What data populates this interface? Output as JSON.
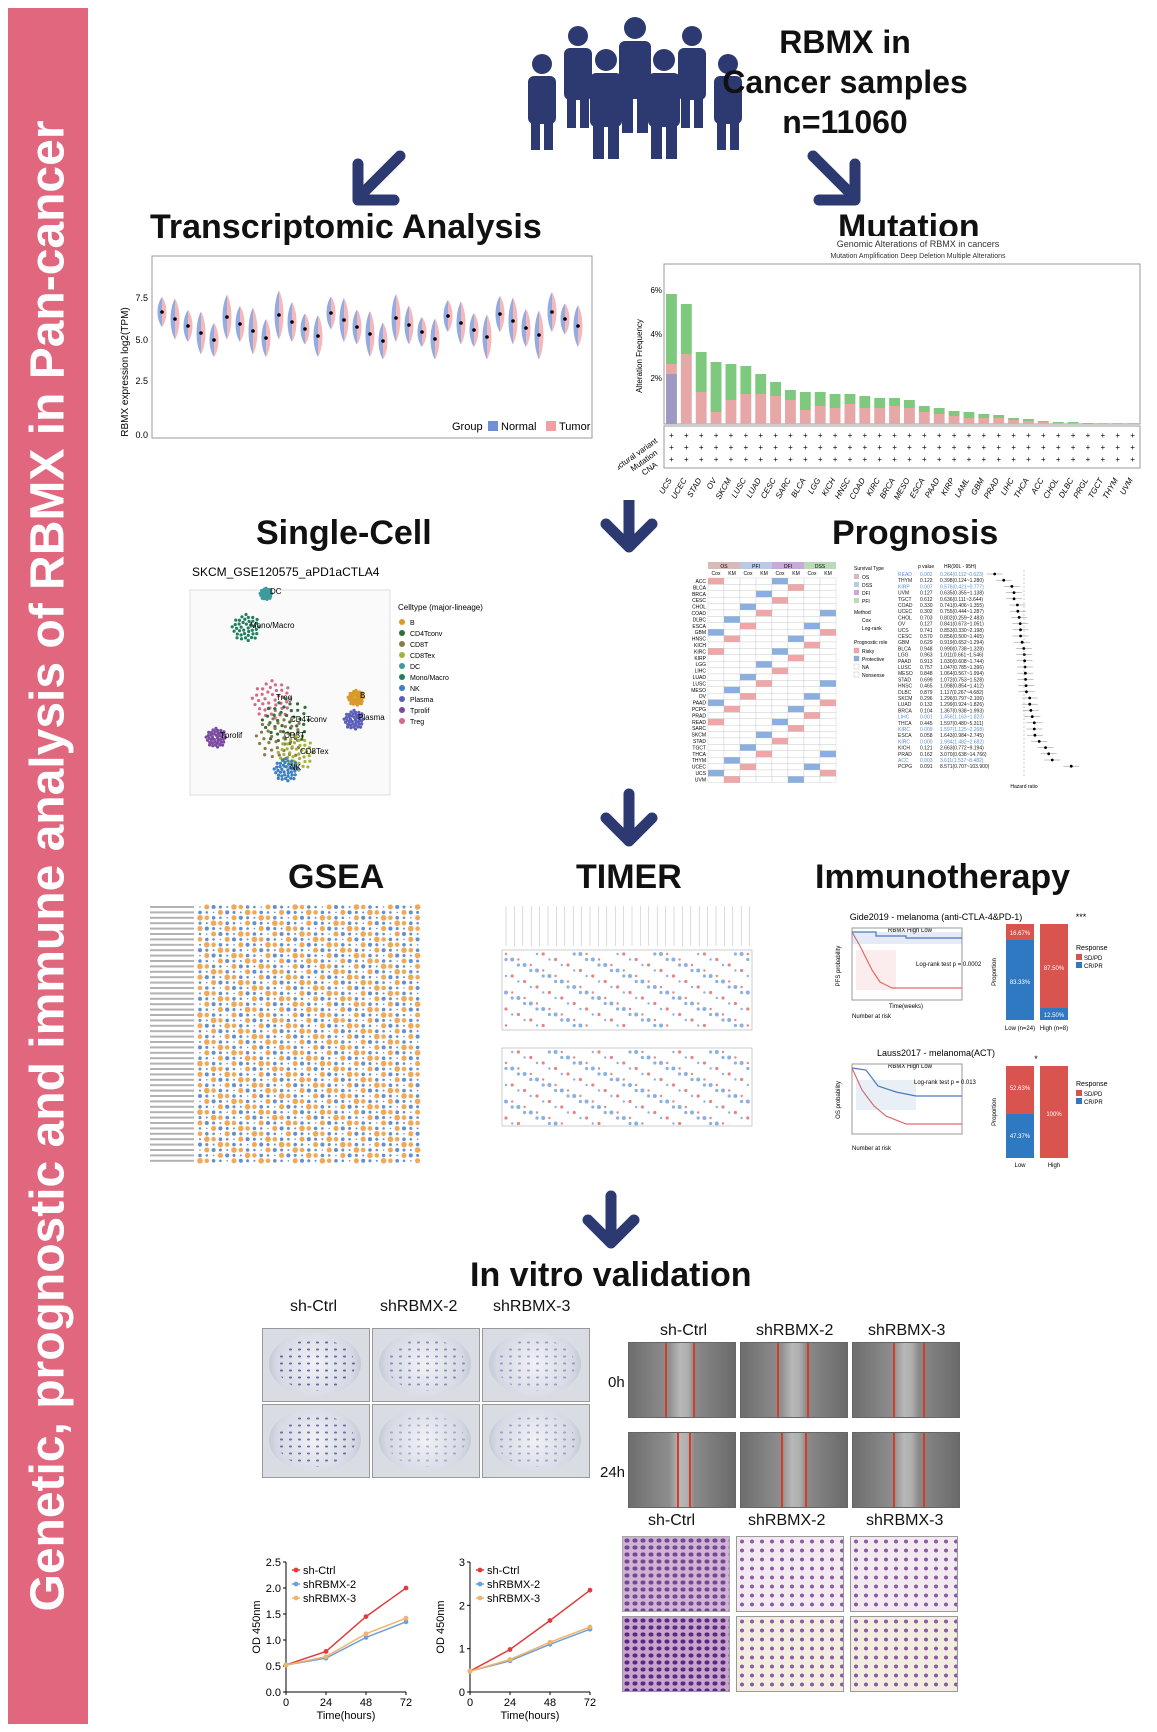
{
  "sidebar": {
    "title": "Genetic, prognostic and immune analysis of RBMX in Pan-cancer"
  },
  "header": {
    "line1": "RBMX in",
    "line2": "Cancer samples",
    "line3": "n=11060"
  },
  "sections": {
    "transcriptomic": "Transcriptomic Analysis",
    "mutation": "Mutation",
    "single_cell": "Single-Cell",
    "prognosis": "Prognosis",
    "gsea": "GSEA",
    "timer": "TIMER",
    "immunotherapy": "Immunotherapy",
    "invitro": "In vitro validation"
  },
  "transcriptomic_panel": {
    "ylabel": "RBMX expression log2(TPM)",
    "legend_title": "Group",
    "legend_normal": "Normal",
    "legend_tumor": "Tumor",
    "yticks": [
      "0.0",
      "2.5",
      "5.0",
      "7.5"
    ],
    "colors": {
      "normal": "#6f8fd6",
      "tumor": "#f0a0a3"
    }
  },
  "mutation_panel": {
    "title": "Genomic Alterations of RBMX in cancers",
    "legend": "Mutation  Amplification  Deep Deletion  Multiple Alterations",
    "ylabel": "Alteration Frequency",
    "yticks": [
      "2%",
      "4%",
      "6%"
    ],
    "row_labels": [
      "Structural variant",
      "Mutation",
      "CNA"
    ],
    "cancers": [
      "UCS",
      "UCEC",
      "STAD",
      "OV",
      "SKCM",
      "LUSC",
      "LUAD",
      "CESC",
      "SARC",
      "BLCA",
      "LGG",
      "KICH",
      "HNSC",
      "COAD",
      "KIRC",
      "BRCA",
      "MESO",
      "ESCA",
      "PAAD",
      "KIRP",
      "LAML",
      "GBM",
      "PRAD",
      "LIHC",
      "THCA",
      "ACC",
      "CHOL",
      "DLBC",
      "PRGL",
      "TGCT",
      "THYM",
      "UVM"
    ],
    "colors": {
      "amplification": "#e7a7a7",
      "mutation": "#7fc97f",
      "deletion": "#6b8fd4"
    }
  },
  "single_cell_panel": {
    "title": "SKCM_GSE120575_aPD1aCTLA4",
    "legend_title": "Celltype (major-lineage)",
    "celltypes": [
      "B",
      "CD4Tconv",
      "CD8T",
      "CD8Tex",
      "DC",
      "Mono/Macro",
      "NK",
      "Plasma",
      "Tprolif",
      "Treg"
    ],
    "cluster_labels": [
      "DC",
      "Mono/Macro",
      "Treg",
      "CD4Tconv",
      "CD8T",
      "CD8Tex",
      "NK",
      "Tprolif",
      "B",
      "Plasma"
    ],
    "celltype_colors": [
      "#d99a2b",
      "#2f6f3a",
      "#8a7b45",
      "#a6b13a",
      "#3c9b9b",
      "#1f7f5e",
      "#3a7fc1",
      "#5b5fb8",
      "#7b4aa0",
      "#d26a8a"
    ]
  },
  "prognosis_panel": {
    "groups": [
      "OS",
      "PFI",
      "DFI",
      "DSS"
    ],
    "subheaders": [
      "Cox",
      "KM"
    ],
    "cancers": [
      "ACC",
      "BLCA",
      "BRCA",
      "CESC",
      "CHOL",
      "COAD",
      "DLBC",
      "ESCA",
      "GBM",
      "HNSC",
      "KICH",
      "KIRC",
      "KIRP",
      "LGG",
      "LIHC",
      "LUAD",
      "LUSC",
      "MESO",
      "OV",
      "PAAD",
      "PCPG",
      "PRAD",
      "READ",
      "SARC",
      "SKCM",
      "STAD",
      "TGCT",
      "THCA",
      "THYM",
      "UCEC",
      "UCS",
      "UVM"
    ],
    "legend_survival": "Survival Type",
    "survival_types": [
      "OS",
      "DSS",
      "DFI",
      "PFI"
    ],
    "legend_method": "Method",
    "methods": [
      "Cox",
      "Log-rank"
    ],
    "legend_role": "Prognostic role",
    "roles": [
      "Risky",
      "Protective",
      "NA",
      "Nonsense"
    ],
    "forest_headers": [
      "p value",
      "HR(90L - 95H)"
    ],
    "forest_rows": [
      {
        "c": "READ",
        "p": "0.002",
        "hr": "0.264(0.112~0.623)"
      },
      {
        "c": "THYM",
        "p": "0.122",
        "hr": "0.398(0.124~1.280)"
      },
      {
        "c": "KIRP",
        "p": "0.007",
        "hr": "0.576(0.421~0.777)"
      },
      {
        "c": "UVM",
        "p": "0.127",
        "hr": "0.635(0.355~1.138)"
      },
      {
        "c": "TGCT",
        "p": "0.612",
        "hr": "0.636(0.111~3.644)"
      },
      {
        "c": "COAD",
        "p": "0.330",
        "hr": "0.741(0.406~1.355)"
      },
      {
        "c": "UCEC",
        "p": "0.302",
        "hr": "0.755(0.444~1.287)"
      },
      {
        "c": "CHOL",
        "p": "0.703",
        "hr": "0.802(0.259~2.483)"
      },
      {
        "c": "OV",
        "p": "0.127",
        "hr": "0.841(0.673~1.051)"
      },
      {
        "c": "UCS",
        "p": "0.741",
        "hr": "0.853(0.330~2.198)"
      },
      {
        "c": "CESC",
        "p": "0.570",
        "hr": "0.856(0.500~1.465)"
      },
      {
        "c": "GBM",
        "p": "0.629",
        "hr": "0.919(0.652~1.294)"
      },
      {
        "c": "BLCA",
        "p": "0.948",
        "hr": "0.990(0.738~1.328)"
      },
      {
        "c": "LGG",
        "p": "0.963",
        "hr": "1.011(0.661~1.546)"
      },
      {
        "c": "PAAD",
        "p": "0.913",
        "hr": "1.030(0.608~1.744)"
      },
      {
        "c": "LUSC",
        "p": "0.757",
        "hr": "1.047(0.785~1.396)"
      },
      {
        "c": "MESO",
        "p": "0.848",
        "hr": "1.064(0.567~1.994)"
      },
      {
        "c": "STAD",
        "p": "0.699",
        "hr": "1.072(0.753~1.528)"
      },
      {
        "c": "HNSC",
        "p": "0.465",
        "hr": "1.098(0.854~1.412)"
      },
      {
        "c": "DLBC",
        "p": "0.879",
        "hr": "1.117(0.267~4.682)"
      },
      {
        "c": "SKCM",
        "p": "0.296",
        "hr": "1.296(0.797~2.106)"
      },
      {
        "c": "LUAD",
        "p": "0.132",
        "hr": "1.299(0.924~1.826)"
      },
      {
        "c": "BRCA",
        "p": "0.104",
        "hr": "1.367(0.938~1.993)"
      },
      {
        "c": "LIHC",
        "p": "0.001",
        "hr": "1.456(1.163~1.823)"
      },
      {
        "c": "THCA",
        "p": "0.445",
        "hr": "1.597(0.480~5.311)"
      },
      {
        "c": "KIRC",
        "p": "0.009",
        "hr": "1.597(1.125~2.268)"
      },
      {
        "c": "ESCA",
        "p": "0.058",
        "hr": "1.643(0.984~2.745)"
      },
      {
        "c": "KIRC",
        "p": "0.000",
        "hr": "1.994(1.482~2.682)"
      },
      {
        "c": "KICH",
        "p": "0.121",
        "hr": "2.663(0.772~9.194)"
      },
      {
        "c": "PRAD",
        "p": "0.162",
        "hr": "3.070(0.638~14.766)"
      },
      {
        "c": "ACC",
        "p": "0.003",
        "hr": "3.611(1.537~8.482)"
      },
      {
        "c": "PCPG",
        "p": "0.091",
        "hr": "8.571(0.707~103.900)"
      }
    ],
    "forest_xlabel": "Hazard ratio"
  },
  "immuno_panel": {
    "title1": "Gide2019 - melanoma (anti-CTLA-4&PD-1)",
    "title2": "Lauss2017 - melanoma(ACT)",
    "km_legend": "RBMX  High  Low",
    "ylabel1": "PFS probability",
    "ylabel2": "OS probability",
    "logrank1": "Log-rank test p = 0.0002",
    "logrank2": "Log-rank test p = 0.013",
    "xlabel": "Time(weeks)",
    "number_at_risk": "Number at risk",
    "bar_ylabel": "Proportion",
    "sig1": "***",
    "sig2": "*",
    "bar1_low": {
      "top": "16.67%",
      "bottom": "83.33%",
      "label": "Low (n=24)"
    },
    "bar1_high": {
      "top": "87.50%",
      "bottom": "12.50%",
      "label": "High (n=8)"
    },
    "bar2_low": {
      "top": "52.63%",
      "bottom": "47.37%",
      "label": "Low"
    },
    "bar2_high": {
      "top": "100%",
      "bottom": "",
      "label": "High"
    },
    "response_title": "Response",
    "response_items": [
      "SD/PD",
      "CR/PR"
    ],
    "colors": {
      "sdpd": "#d9534f",
      "crpr": "#2f79c2"
    }
  },
  "invitro": {
    "colony_labels": [
      "sh-Ctrl",
      "shRBMX-2",
      "shRBMX-3"
    ],
    "wound_labels": [
      "sh-Ctrl",
      "shRBMX-2",
      "shRBMX-3"
    ],
    "wound_times": [
      "0h",
      "24h"
    ],
    "transwell_labels": [
      "sh-Ctrl",
      "shRBMX-2",
      "shRBMX-3"
    ],
    "growth_ylabel": "OD 450nm",
    "growth_xlabel": "Time(hours)"
  },
  "chart_data": [
    {
      "type": "line",
      "title": "",
      "xlabel": "Time(hours)",
      "ylabel": "OD 450nm",
      "x": [
        0,
        24,
        48,
        72
      ],
      "ylim": [
        0.0,
        2.5
      ],
      "yticks": [
        "0.0",
        "0.5",
        "1.0",
        "1.5",
        "2.0",
        "2.5"
      ],
      "series": [
        {
          "name": "sh-Ctrl",
          "values": [
            0.52,
            0.78,
            1.45,
            2.0
          ],
          "color": "#e03c3c"
        },
        {
          "name": "shRBMX-2",
          "values": [
            0.52,
            0.65,
            1.05,
            1.35
          ],
          "color": "#6f9fd8"
        },
        {
          "name": "shRBMX-3",
          "values": [
            0.52,
            0.68,
            1.12,
            1.42
          ],
          "color": "#f2b36b"
        }
      ]
    },
    {
      "type": "line",
      "title": "",
      "xlabel": "Time(hours)",
      "ylabel": "OD 450nm",
      "x": [
        0,
        24,
        48,
        72
      ],
      "ylim": [
        0,
        3
      ],
      "yticks": [
        "0",
        "1",
        "2",
        "3"
      ],
      "series": [
        {
          "name": "sh-Ctrl",
          "values": [
            0.48,
            0.98,
            1.65,
            2.35
          ],
          "color": "#e03c3c"
        },
        {
          "name": "shRBMX-2",
          "values": [
            0.48,
            0.72,
            1.1,
            1.45
          ],
          "color": "#6f9fd8"
        },
        {
          "name": "shRBMX-3",
          "values": [
            0.48,
            0.75,
            1.15,
            1.5
          ],
          "color": "#f2b36b"
        }
      ]
    }
  ]
}
